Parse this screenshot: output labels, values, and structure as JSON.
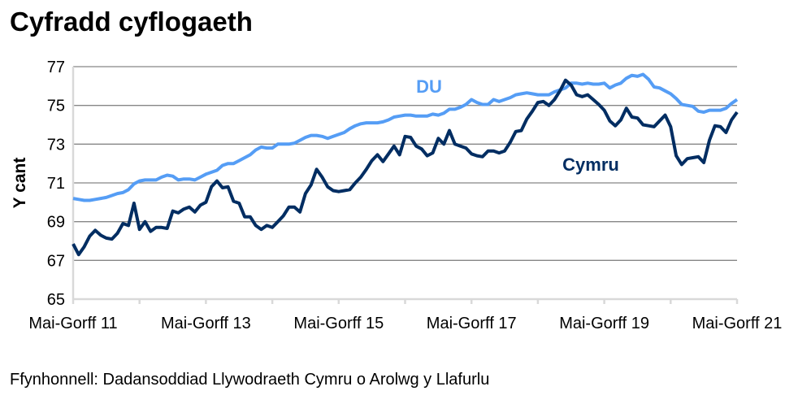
{
  "chart_data": {
    "type": "line",
    "title": "Cyfradd cyflogaeth",
    "ylabel": "Y cant",
    "xlabel": "",
    "ylim": [
      65,
      77
    ],
    "yticks": [
      65,
      67,
      69,
      71,
      73,
      75,
      77
    ],
    "x_start": "Mai-Gorff 11",
    "x_end": "Mai-Gorff 21",
    "x_frequency": "monthly",
    "xtick_labels": [
      "Mai-Gorff 11",
      "Mai-Gorff 13",
      "Mai-Gorff 15",
      "Mai-Gorff 17",
      "Mai-Gorff 19",
      "Mai-Gorff 21"
    ],
    "grid": true,
    "series": [
      {
        "name": "DU",
        "color": "#559DF5",
        "values": [
          70.2,
          70.15,
          70.1,
          70.1,
          70.15,
          70.2,
          70.25,
          70.35,
          70.45,
          70.5,
          70.65,
          70.95,
          71.1,
          71.15,
          71.15,
          71.15,
          71.3,
          71.4,
          71.35,
          71.15,
          71.2,
          71.2,
          71.15,
          71.3,
          71.45,
          71.55,
          71.65,
          71.9,
          72.0,
          72.0,
          72.15,
          72.3,
          72.45,
          72.7,
          72.85,
          72.8,
          72.8,
          73.0,
          73.0,
          73.0,
          73.05,
          73.2,
          73.35,
          73.45,
          73.45,
          73.4,
          73.3,
          73.4,
          73.5,
          73.6,
          73.8,
          73.95,
          74.05,
          74.1,
          74.1,
          74.1,
          74.15,
          74.25,
          74.4,
          74.45,
          74.5,
          74.5,
          74.45,
          74.45,
          74.45,
          74.55,
          74.5,
          74.6,
          74.8,
          74.8,
          74.9,
          75.05,
          75.3,
          75.15,
          75.05,
          75.05,
          75.3,
          75.2,
          75.3,
          75.4,
          75.55,
          75.6,
          75.65,
          75.6,
          75.55,
          75.55,
          75.55,
          75.7,
          75.8,
          75.9,
          76.15,
          76.15,
          76.1,
          76.15,
          76.1,
          76.1,
          76.15,
          75.9,
          76.05,
          76.15,
          76.4,
          76.55,
          76.5,
          76.6,
          76.35,
          75.95,
          75.9,
          75.75,
          75.6,
          75.35,
          75.05,
          75.0,
          74.95,
          74.7,
          74.65,
          74.75,
          74.75,
          74.75,
          74.85,
          75.1,
          75.3
        ]
      },
      {
        "name": "Cymru",
        "color": "#002D62",
        "values": [
          67.85,
          67.3,
          67.7,
          68.25,
          68.55,
          68.3,
          68.15,
          68.1,
          68.4,
          68.9,
          68.8,
          69.95,
          68.6,
          69.0,
          68.5,
          68.7,
          68.7,
          68.65,
          69.55,
          69.45,
          69.65,
          69.75,
          69.5,
          69.85,
          70.0,
          70.8,
          71.1,
          70.75,
          70.8,
          70.05,
          69.95,
          69.25,
          69.25,
          68.8,
          68.6,
          68.8,
          68.7,
          69.0,
          69.3,
          69.75,
          69.75,
          69.5,
          70.45,
          70.9,
          71.7,
          71.3,
          70.8,
          70.6,
          70.55,
          70.6,
          70.65,
          71.0,
          71.3,
          71.7,
          72.15,
          72.45,
          72.1,
          72.5,
          72.9,
          72.45,
          73.4,
          73.35,
          72.9,
          72.75,
          72.4,
          72.55,
          73.3,
          73.0,
          73.7,
          73.0,
          72.9,
          72.8,
          72.5,
          72.4,
          72.35,
          72.65,
          72.65,
          72.55,
          72.65,
          73.1,
          73.65,
          73.7,
          74.3,
          74.7,
          75.15,
          75.2,
          75.0,
          75.3,
          75.75,
          76.3,
          76.05,
          75.55,
          75.45,
          75.55,
          75.3,
          75.05,
          74.75,
          74.2,
          73.95,
          74.25,
          74.85,
          74.4,
          74.35,
          74.0,
          73.95,
          73.9,
          74.2,
          74.5,
          73.9,
          72.4,
          71.95,
          72.25,
          72.3,
          72.35,
          72.05,
          73.2,
          73.95,
          73.9,
          73.6,
          74.25,
          74.65
        ]
      }
    ],
    "axis_color": "#D9D9D9",
    "grid_color": "#868686"
  },
  "source": "Ffynhonnell: Dadansoddiad Llywodraeth Cymru o Arolwg y Llafurlu"
}
